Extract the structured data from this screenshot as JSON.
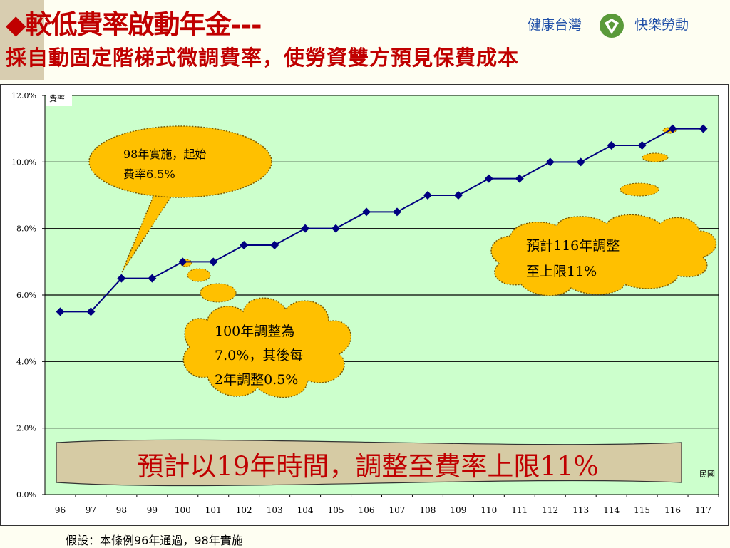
{
  "header": {
    "title_line1": "◆較低費率啟動年金---",
    "title_line2": "採自動固定階梯式微調費率，使勞資雙方預見保費成本",
    "brand_left": "健康台灣",
    "brand_right": "快樂勞動",
    "brand_icon": "labor-insurance-logo-icon"
  },
  "callouts": {
    "c98_line1": "98年實施，起始",
    "c98_line2": "費率6.5%",
    "c100_line1": "100年調整為",
    "c100_line2": "7.0%，其後每",
    "c100_line3": "2年調整0.5%",
    "c116_line1": "預計116年調整",
    "c116_line2": "至上限11%"
  },
  "banner": "預計以19年時間，調整至費率上限11%",
  "footer": "假設：本條例96年通過，98年實施",
  "colors": {
    "title": "#c00000",
    "plot_bg": "#ccffcc",
    "line": "#000080",
    "callout": "#ffc000",
    "banner_bg": "#d6cba4",
    "banner_text": "#c00000"
  },
  "chart_data": {
    "type": "line",
    "ylabel": "費率",
    "xlabel": "民國",
    "categories": [
      "96",
      "97",
      "98",
      "99",
      "100",
      "101",
      "102",
      "103",
      "104",
      "105",
      "106",
      "107",
      "108",
      "109",
      "110",
      "111",
      "112",
      "113",
      "114",
      "115",
      "116",
      "117"
    ],
    "values": [
      5.5,
      5.5,
      6.5,
      6.5,
      7.0,
      7.0,
      7.5,
      7.5,
      8.0,
      8.0,
      8.5,
      8.5,
      9.0,
      9.0,
      9.5,
      9.5,
      10.0,
      10.0,
      10.5,
      10.5,
      11.0,
      11.0
    ],
    "ylim": [
      0,
      12
    ],
    "yticks": [
      "0.0%",
      "2.0%",
      "4.0%",
      "6.0%",
      "8.0%",
      "10.0%",
      "12.0%"
    ],
    "grid": true
  }
}
